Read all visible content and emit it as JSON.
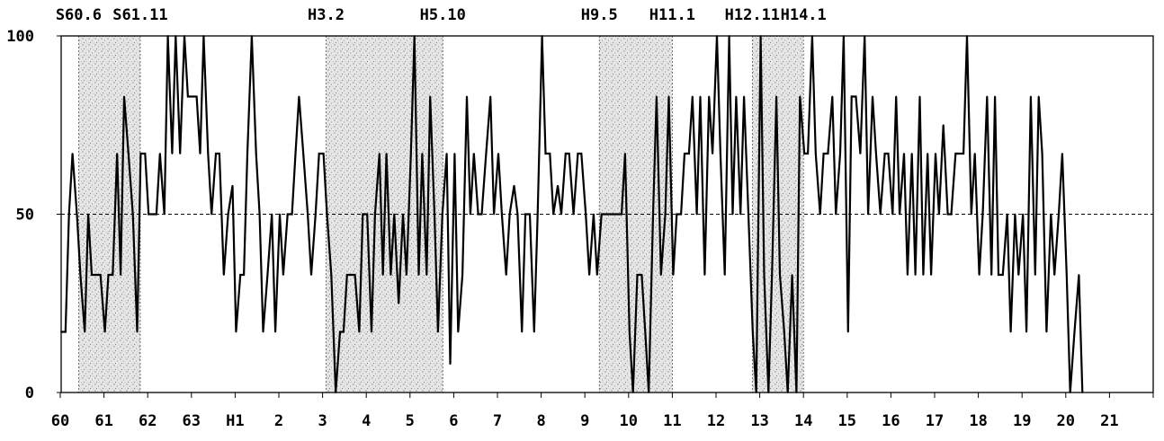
{
  "chart_data": {
    "type": "line",
    "title": "",
    "xlabel": "",
    "ylabel": "",
    "ylim": [
      0,
      100
    ],
    "xlim": [
      1985.0,
      2010.0
    ],
    "y_ticks": [
      "0",
      "50",
      "100"
    ],
    "x_ticks": [
      {
        "label": "60",
        "x": 1985
      },
      {
        "label": "61",
        "x": 1986
      },
      {
        "label": "62",
        "x": 1987
      },
      {
        "label": "63",
        "x": 1988
      },
      {
        "label": "H1",
        "x": 1989
      },
      {
        "label": "2",
        "x": 1990
      },
      {
        "label": "3",
        "x": 1991
      },
      {
        "label": "4",
        "x": 1992
      },
      {
        "label": "5",
        "x": 1993
      },
      {
        "label": "6",
        "x": 1994
      },
      {
        "label": "7",
        "x": 1995
      },
      {
        "label": "8",
        "x": 1996
      },
      {
        "label": "9",
        "x": 1997
      },
      {
        "label": "10",
        "x": 1998
      },
      {
        "label": "11",
        "x": 1999
      },
      {
        "label": "12",
        "x": 2000
      },
      {
        "label": "13",
        "x": 2001
      },
      {
        "label": "14",
        "x": 2002
      },
      {
        "label": "15",
        "x": 2003
      },
      {
        "label": "16",
        "x": 2004
      },
      {
        "label": "17",
        "x": 2005
      },
      {
        "label": "18",
        "x": 2006
      },
      {
        "label": "19",
        "x": 2007
      },
      {
        "label": "20",
        "x": 2008
      },
      {
        "label": "21",
        "x": 2009
      }
    ],
    "turning_points": [
      {
        "label": "S60.6",
        "x": 1985.42
      },
      {
        "label": "S61.11",
        "x": 1986.83
      },
      {
        "label": "H3.2",
        "x": 1991.08
      },
      {
        "label": "H5.10",
        "x": 1993.75
      },
      {
        "label": "H9.5",
        "x": 1997.33
      },
      {
        "label": "H11.1",
        "x": 1999.0
      },
      {
        "label": "H12.11",
        "x": 2000.83
      },
      {
        "label": "H14.1",
        "x": 2002.0
      }
    ],
    "shaded_periods": [
      [
        1985.42,
        1986.83
      ],
      [
        1991.08,
        1993.75
      ],
      [
        1997.33,
        1999.0
      ],
      [
        2000.83,
        2002.0
      ]
    ],
    "reference_line": 50,
    "series": [
      {
        "points": [
          [
            1985.02,
            17
          ],
          [
            1985.12,
            17
          ],
          [
            1985.2,
            50
          ],
          [
            1985.28,
            67
          ],
          [
            1985.38,
            50
          ],
          [
            1985.46,
            33
          ],
          [
            1985.56,
            17
          ],
          [
            1985.64,
            50
          ],
          [
            1985.72,
            33
          ],
          [
            1985.8,
            33
          ],
          [
            1985.92,
            33
          ],
          [
            1986.02,
            17
          ],
          [
            1986.1,
            33
          ],
          [
            1986.2,
            33
          ],
          [
            1986.3,
            67
          ],
          [
            1986.38,
            33
          ],
          [
            1986.46,
            83
          ],
          [
            1986.56,
            67
          ],
          [
            1986.66,
            50
          ],
          [
            1986.76,
            17
          ],
          [
            1986.84,
            67
          ],
          [
            1986.94,
            67
          ],
          [
            1987.02,
            50
          ],
          [
            1987.1,
            50
          ],
          [
            1987.2,
            50
          ],
          [
            1987.28,
            67
          ],
          [
            1987.38,
            50
          ],
          [
            1987.46,
            100
          ],
          [
            1987.56,
            67
          ],
          [
            1987.64,
            100
          ],
          [
            1987.74,
            67
          ],
          [
            1987.84,
            100
          ],
          [
            1987.92,
            83
          ],
          [
            1988.02,
            83
          ],
          [
            1988.12,
            83
          ],
          [
            1988.2,
            67
          ],
          [
            1988.28,
            100
          ],
          [
            1988.38,
            67
          ],
          [
            1988.46,
            50
          ],
          [
            1988.56,
            67
          ],
          [
            1988.64,
            67
          ],
          [
            1988.74,
            33
          ],
          [
            1988.84,
            50
          ],
          [
            1988.94,
            58
          ],
          [
            1989.02,
            17
          ],
          [
            1989.12,
            33
          ],
          [
            1989.2,
            33
          ],
          [
            1989.28,
            67
          ],
          [
            1989.38,
            100
          ],
          [
            1989.48,
            67
          ],
          [
            1989.56,
            50
          ],
          [
            1989.64,
            17
          ],
          [
            1989.74,
            33
          ],
          [
            1989.84,
            50
          ],
          [
            1989.92,
            17
          ],
          [
            1990.02,
            50
          ],
          [
            1990.1,
            33
          ],
          [
            1990.2,
            50
          ],
          [
            1990.3,
            50
          ],
          [
            1990.38,
            67
          ],
          [
            1990.46,
            83
          ],
          [
            1990.56,
            67
          ],
          [
            1990.66,
            50
          ],
          [
            1990.74,
            33
          ],
          [
            1990.84,
            50
          ],
          [
            1990.92,
            67
          ],
          [
            1991.02,
            67
          ],
          [
            1991.1,
            50
          ],
          [
            1991.2,
            33
          ],
          [
            1991.3,
            0
          ],
          [
            1991.4,
            17
          ],
          [
            1991.48,
            17
          ],
          [
            1991.56,
            33
          ],
          [
            1991.66,
            33
          ],
          [
            1991.74,
            33
          ],
          [
            1991.84,
            17
          ],
          [
            1991.92,
            50
          ],
          [
            1992.02,
            50
          ],
          [
            1992.12,
            17
          ],
          [
            1992.2,
            50
          ],
          [
            1992.3,
            67
          ],
          [
            1992.38,
            33
          ],
          [
            1992.46,
            67
          ],
          [
            1992.56,
            33
          ],
          [
            1992.64,
            50
          ],
          [
            1992.74,
            25
          ],
          [
            1992.84,
            50
          ],
          [
            1992.92,
            33
          ],
          [
            1993.02,
            67
          ],
          [
            1993.1,
            100
          ],
          [
            1993.2,
            33
          ],
          [
            1993.28,
            67
          ],
          [
            1993.38,
            33
          ],
          [
            1993.46,
            83
          ],
          [
            1993.56,
            50
          ],
          [
            1993.64,
            17
          ],
          [
            1993.74,
            50
          ],
          [
            1993.84,
            67
          ],
          [
            1993.92,
            8
          ],
          [
            1994.02,
            67
          ],
          [
            1994.1,
            17
          ],
          [
            1994.2,
            33
          ],
          [
            1994.3,
            83
          ],
          [
            1994.38,
            50
          ],
          [
            1994.46,
            67
          ],
          [
            1994.56,
            50
          ],
          [
            1994.64,
            50
          ],
          [
            1994.74,
            67
          ],
          [
            1994.84,
            83
          ],
          [
            1994.92,
            50
          ],
          [
            1995.02,
            67
          ],
          [
            1995.1,
            50
          ],
          [
            1995.2,
            33
          ],
          [
            1995.28,
            50
          ],
          [
            1995.38,
            58
          ],
          [
            1995.46,
            50
          ],
          [
            1995.56,
            17
          ],
          [
            1995.64,
            50
          ],
          [
            1995.74,
            50
          ],
          [
            1995.84,
            17
          ],
          [
            1995.92,
            50
          ],
          [
            1996.02,
            100
          ],
          [
            1996.1,
            67
          ],
          [
            1996.2,
            67
          ],
          [
            1996.28,
            50
          ],
          [
            1996.38,
            58
          ],
          [
            1996.46,
            50
          ],
          [
            1996.56,
            67
          ],
          [
            1996.64,
            67
          ],
          [
            1996.74,
            50
          ],
          [
            1996.84,
            67
          ],
          [
            1996.92,
            67
          ],
          [
            1997.02,
            50
          ],
          [
            1997.1,
            33
          ],
          [
            1997.2,
            50
          ],
          [
            1997.28,
            33
          ],
          [
            1997.38,
            50
          ],
          [
            1997.46,
            50
          ],
          [
            1997.56,
            50
          ],
          [
            1997.64,
            50
          ],
          [
            1997.74,
            50
          ],
          [
            1997.84,
            50
          ],
          [
            1997.92,
            67
          ],
          [
            1998.02,
            17
          ],
          [
            1998.1,
            0
          ],
          [
            1998.2,
            33
          ],
          [
            1998.3,
            33
          ],
          [
            1998.38,
            17
          ],
          [
            1998.46,
            0
          ],
          [
            1998.56,
            50
          ],
          [
            1998.64,
            83
          ],
          [
            1998.74,
            33
          ],
          [
            1998.84,
            50
          ],
          [
            1998.92,
            83
          ],
          [
            1999.02,
            33
          ],
          [
            1999.1,
            50
          ],
          [
            1999.2,
            50
          ],
          [
            1999.28,
            67
          ],
          [
            1999.38,
            67
          ],
          [
            1999.46,
            83
          ],
          [
            1999.56,
            50
          ],
          [
            1999.64,
            83
          ],
          [
            1999.74,
            33
          ],
          [
            1999.84,
            83
          ],
          [
            1999.92,
            67
          ],
          [
            2000.02,
            100
          ],
          [
            2000.1,
            67
          ],
          [
            2000.2,
            33
          ],
          [
            2000.3,
            100
          ],
          [
            2000.38,
            50
          ],
          [
            2000.46,
            83
          ],
          [
            2000.56,
            50
          ],
          [
            2000.64,
            83
          ],
          [
            2000.74,
            50
          ],
          [
            2000.84,
            17
          ],
          [
            2000.92,
            0
          ],
          [
            2001.02,
            100
          ],
          [
            2001.1,
            33
          ],
          [
            2001.2,
            0
          ],
          [
            2001.28,
            33
          ],
          [
            2001.38,
            83
          ],
          [
            2001.46,
            33
          ],
          [
            2001.56,
            17
          ],
          [
            2001.64,
            0
          ],
          [
            2001.74,
            33
          ],
          [
            2001.84,
            0
          ],
          [
            2001.92,
            83
          ],
          [
            2002.02,
            67
          ],
          [
            2002.1,
            67
          ],
          [
            2002.2,
            100
          ],
          [
            2002.28,
            67
          ],
          [
            2002.38,
            50
          ],
          [
            2002.46,
            67
          ],
          [
            2002.56,
            67
          ],
          [
            2002.66,
            83
          ],
          [
            2002.74,
            50
          ],
          [
            2002.84,
            67
          ],
          [
            2002.92,
            100
          ],
          [
            2003.02,
            17
          ],
          [
            2003.1,
            83
          ],
          [
            2003.2,
            83
          ],
          [
            2003.3,
            67
          ],
          [
            2003.4,
            100
          ],
          [
            2003.48,
            50
          ],
          [
            2003.58,
            83
          ],
          [
            2003.66,
            67
          ],
          [
            2003.76,
            50
          ],
          [
            2003.86,
            67
          ],
          [
            2003.94,
            67
          ],
          [
            2004.04,
            50
          ],
          [
            2004.12,
            83
          ],
          [
            2004.2,
            50
          ],
          [
            2004.3,
            67
          ],
          [
            2004.38,
            33
          ],
          [
            2004.48,
            67
          ],
          [
            2004.56,
            33
          ],
          [
            2004.66,
            83
          ],
          [
            2004.74,
            33
          ],
          [
            2004.84,
            67
          ],
          [
            2004.92,
            33
          ],
          [
            2005.02,
            67
          ],
          [
            2005.1,
            50
          ],
          [
            2005.2,
            75
          ],
          [
            2005.3,
            50
          ],
          [
            2005.38,
            50
          ],
          [
            2005.48,
            67
          ],
          [
            2005.56,
            67
          ],
          [
            2005.66,
            67
          ],
          [
            2005.74,
            100
          ],
          [
            2005.84,
            50
          ],
          [
            2005.92,
            67
          ],
          [
            2006.02,
            33
          ],
          [
            2006.1,
            50
          ],
          [
            2006.2,
            83
          ],
          [
            2006.3,
            33
          ],
          [
            2006.38,
            83
          ],
          [
            2006.46,
            33
          ],
          [
            2006.56,
            33
          ],
          [
            2006.66,
            50
          ],
          [
            2006.74,
            17
          ],
          [
            2006.84,
            50
          ],
          [
            2006.92,
            33
          ],
          [
            2007.02,
            50
          ],
          [
            2007.1,
            17
          ],
          [
            2007.2,
            83
          ],
          [
            2007.3,
            33
          ],
          [
            2007.38,
            83
          ],
          [
            2007.46,
            67
          ],
          [
            2007.56,
            17
          ],
          [
            2007.66,
            50
          ],
          [
            2007.74,
            33
          ],
          [
            2007.84,
            50
          ],
          [
            2007.92,
            67
          ],
          [
            2008.02,
            33
          ],
          [
            2008.1,
            0
          ],
          [
            2008.2,
            17
          ],
          [
            2008.3,
            33
          ],
          [
            2008.38,
            0
          ]
        ]
      }
    ]
  }
}
